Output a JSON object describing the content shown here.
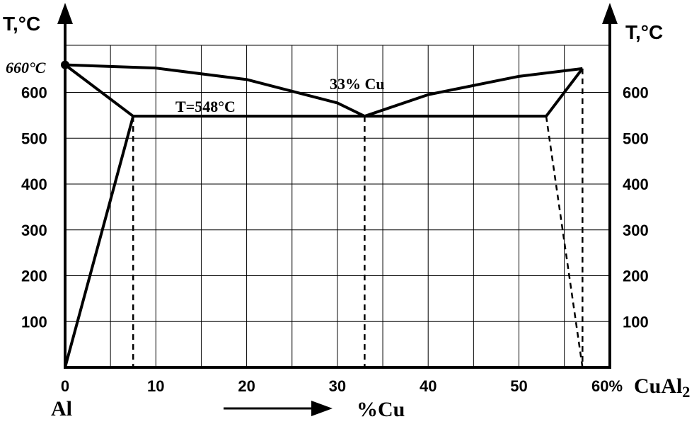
{
  "diagram": {
    "type": "phase-diagram",
    "left_axis_title": "T,°C",
    "right_axis_title": "T,°C",
    "melting_label": "660°C",
    "eutectic_temp_label": "T=548°C",
    "eutectic_comp_label": "33% Cu",
    "bottom_left_label": "Al",
    "bottom_center_label": "%Cu",
    "right_end_x_label": "60%",
    "right_end_compound_label": "CuAl",
    "right_end_compound_sub": "2",
    "y_ticks": [
      "100",
      "200",
      "300",
      "400",
      "500",
      "600"
    ],
    "x_ticks": [
      "0",
      "10",
      "20",
      "30",
      "40",
      "50"
    ]
  },
  "chart_data": {
    "type": "phase-diagram",
    "xlabel": "%Cu",
    "ylabel": "T,°C",
    "xlim": [
      0,
      60
    ],
    "ylim": [
      0,
      700
    ],
    "grid": true,
    "melting_point_al": {
      "x": 0,
      "y": 660
    },
    "compound_melting": {
      "x": 57,
      "y": 652
    },
    "eutectic": {
      "x": 33,
      "y": 548
    },
    "liquidus_left": [
      [
        0,
        660
      ],
      [
        10,
        653
      ],
      [
        20,
        628
      ],
      [
        30,
        577
      ],
      [
        33,
        548
      ]
    ],
    "liquidus_right": [
      [
        33,
        548
      ],
      [
        40,
        595
      ],
      [
        50,
        635
      ],
      [
        57,
        652
      ]
    ],
    "eutectic_line": [
      [
        7.5,
        548
      ],
      [
        53,
        548
      ]
    ],
    "solvus_left": [
      [
        0,
        0
      ],
      [
        7.5,
        548
      ]
    ],
    "solidus_left": [
      [
        0,
        660
      ],
      [
        7.5,
        548
      ]
    ],
    "solidus_right": [
      [
        53,
        548
      ],
      [
        57,
        652
      ]
    ],
    "dashed_verticals": [
      [
        7.5,
        548
      ],
      [
        33,
        548
      ],
      [
        57,
        652
      ]
    ],
    "dashed_solvus_right": [
      [
        53,
        548
      ],
      [
        57,
        0
      ]
    ]
  }
}
